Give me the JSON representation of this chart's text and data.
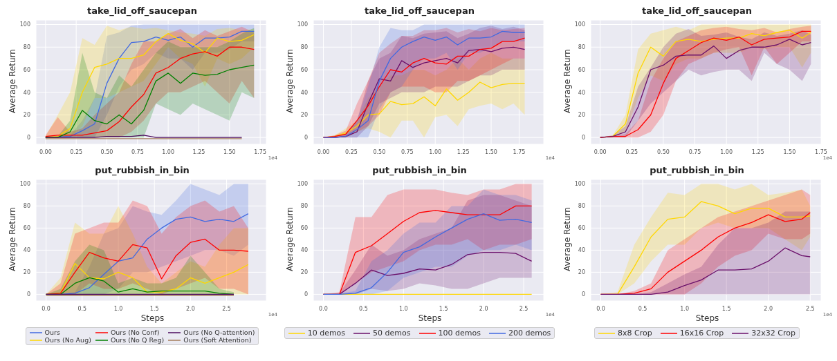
{
  "chart_data": [
    {
      "type": "line",
      "title": "take_lid_off_saucepan",
      "ylabel": "Average Return",
      "annotations": [
        "1e4"
      ],
      "grid": true,
      "xlim": [
        -0.078,
        1.8
      ],
      "xticks": [
        {
          "value": 0,
          "label": "0.00"
        },
        {
          "value": 0.25,
          "label": "0.25"
        },
        {
          "value": 0.5,
          "label": "0.50"
        },
        {
          "value": 0.75,
          "label": "0.75"
        },
        {
          "value": 1,
          "label": "1.00"
        },
        {
          "value": 1.25,
          "label": "1.25"
        },
        {
          "value": 1.5,
          "label": "1.50"
        },
        {
          "value": 1.75,
          "label": "1.75"
        }
      ],
      "ylim": [
        -6,
        104
      ],
      "yticks": [
        0,
        20,
        40,
        60,
        80,
        100
      ],
      "x": [
        0,
        0.1,
        0.2,
        0.3,
        0.4,
        0.5,
        0.6,
        0.7,
        0.8,
        0.9,
        1.0,
        1.1,
        1.2,
        1.3,
        1.4,
        1.5,
        1.6,
        1.7
      ],
      "series": [
        {
          "color": "#4169e1",
          "values": [
            0,
            0.5,
            1,
            6,
            12,
            48,
            70,
            84,
            85,
            89,
            86,
            89,
            80,
            88,
            88,
            89,
            94,
            94
          ],
          "lower": [
            0,
            0,
            0,
            0,
            0,
            20,
            45,
            60,
            65,
            75,
            70,
            70,
            60,
            75,
            75,
            78,
            85,
            85
          ],
          "upper": [
            1,
            1,
            2,
            15,
            35,
            90,
            93,
            99,
            100,
            100,
            100,
            100,
            100,
            100,
            100,
            100,
            100,
            100
          ]
        },
        {
          "color": "#ffd700",
          "values": [
            0,
            1,
            8,
            40,
            62,
            65,
            70,
            70,
            73,
            85,
            92,
            86,
            83,
            75,
            88,
            85,
            86,
            91
          ],
          "lower": [
            0,
            0,
            0,
            10,
            35,
            35,
            40,
            45,
            50,
            65,
            80,
            70,
            65,
            45,
            70,
            65,
            70,
            80
          ],
          "upper": [
            1,
            20,
            40,
            88,
            82,
            99,
            95,
            98,
            96,
            97,
            95,
            93,
            92,
            90,
            96,
            97,
            95,
            96
          ]
        },
        {
          "color": "#ff0000",
          "values": [
            1,
            2,
            2,
            2,
            4,
            6,
            14,
            27,
            38,
            57,
            62,
            70,
            74,
            76,
            72,
            80,
            80,
            78
          ],
          "lower": [
            0,
            0,
            0,
            0,
            0,
            0,
            0,
            5,
            15,
            30,
            40,
            40,
            45,
            50,
            40,
            30,
            50,
            35
          ],
          "upper": [
            2,
            18,
            5,
            8,
            20,
            30,
            40,
            65,
            85,
            85,
            92,
            96,
            88,
            95,
            90,
            94,
            98,
            93
          ]
        },
        {
          "color": "#008000",
          "values": [
            0,
            0,
            5,
            24,
            15,
            12,
            20,
            12,
            24,
            50,
            57,
            48,
            57,
            55,
            56,
            60,
            62,
            64
          ],
          "lower": [
            0,
            0,
            0,
            0,
            0,
            0,
            0,
            0,
            0,
            30,
            25,
            20,
            30,
            25,
            20,
            15,
            40,
            35
          ],
          "upper": [
            0,
            1,
            15,
            75,
            40,
            35,
            55,
            45,
            60,
            75,
            85,
            80,
            80,
            80,
            80,
            85,
            92,
            97
          ]
        },
        {
          "color": "#a57c5b",
          "values": [
            -1,
            -1,
            -1,
            -1,
            -1,
            -1,
            -1,
            -1,
            -1,
            -1,
            -1,
            -1,
            -1,
            -1,
            -1,
            -1,
            -1,
            null
          ]
        },
        {
          "color": "#4b0a5e",
          "values": [
            0,
            0,
            0,
            0,
            0,
            1,
            1,
            1,
            2,
            0,
            0,
            0,
            0,
            0,
            0,
            0,
            0,
            null
          ]
        }
      ]
    },
    {
      "type": "line",
      "title": "take_lid_off_saucepan",
      "ylabel": "Average Return",
      "annotations": [
        "1e4"
      ],
      "grid": true,
      "xlim": [
        -0.09,
        1.97
      ],
      "xticks": [
        {
          "value": 0,
          "label": "0.00"
        },
        {
          "value": 0.25,
          "label": "0.25"
        },
        {
          "value": 0.5,
          "label": "0.50"
        },
        {
          "value": 0.75,
          "label": "0.75"
        },
        {
          "value": 1,
          "label": "1.00"
        },
        {
          "value": 1.25,
          "label": "1.25"
        },
        {
          "value": 1.5,
          "label": "1.50"
        },
        {
          "value": 1.75,
          "label": "1.75"
        }
      ],
      "ylim": [
        -6,
        104
      ],
      "yticks": [
        0,
        20,
        40,
        60,
        80,
        100
      ],
      "x": [
        0,
        0.1,
        0.2,
        0.3,
        0.4,
        0.5,
        0.6,
        0.7,
        0.8,
        0.9,
        1.0,
        1.1,
        1.2,
        1.3,
        1.4,
        1.5,
        1.6,
        1.7,
        1.8
      ],
      "series": [
        {
          "color": "#ffd700",
          "values": [
            0,
            1,
            4,
            10,
            20,
            21,
            32,
            29,
            30,
            36,
            28,
            43,
            33,
            40,
            49,
            44,
            47,
            48,
            48
          ],
          "lower": [
            0,
            0,
            0,
            5,
            8,
            5,
            0,
            15,
            15,
            0,
            18,
            20,
            10,
            25,
            28,
            30,
            25,
            30,
            20
          ],
          "upper": [
            0,
            2,
            8,
            15,
            35,
            45,
            55,
            55,
            60,
            60,
            55,
            60,
            70,
            60,
            70,
            75,
            70,
            70,
            70
          ]
        },
        {
          "color": "#6a0f6a",
          "values": [
            0,
            0,
            1,
            5,
            30,
            52,
            50,
            68,
            62,
            66,
            68,
            70,
            66,
            77,
            78,
            76,
            79,
            80,
            78
          ],
          "lower": [
            0,
            0,
            0,
            0,
            10,
            30,
            35,
            40,
            40,
            40,
            45,
            45,
            45,
            50,
            55,
            55,
            60,
            60,
            60
          ],
          "upper": [
            0,
            1,
            3,
            15,
            50,
            70,
            75,
            90,
            88,
            92,
            93,
            94,
            88,
            92,
            97,
            99,
            96,
            98,
            95
          ]
        },
        {
          "color": "#ff0000",
          "values": [
            0,
            1,
            3,
            15,
            28,
            45,
            60,
            58,
            66,
            70,
            66,
            65,
            72,
            72,
            78,
            79,
            85,
            85,
            88
          ],
          "lower": [
            0,
            0,
            0,
            5,
            10,
            20,
            40,
            45,
            45,
            45,
            40,
            40,
            50,
            50,
            55,
            60,
            65,
            70,
            70
          ],
          "upper": [
            0,
            2,
            6,
            30,
            50,
            75,
            83,
            90,
            90,
            95,
            95,
            97,
            93,
            96,
            94,
            97,
            95,
            96,
            97
          ]
        },
        {
          "color": "#4169e1",
          "values": [
            0,
            0,
            1,
            7,
            15,
            50,
            70,
            80,
            85,
            89,
            86,
            89,
            82,
            88,
            88,
            89,
            94,
            93,
            93
          ],
          "lower": [
            0,
            0,
            0,
            0,
            0,
            25,
            40,
            45,
            60,
            70,
            70,
            75,
            60,
            75,
            75,
            80,
            85,
            85,
            85
          ],
          "upper": [
            0,
            1,
            3,
            15,
            45,
            80,
            97,
            95,
            95,
            100,
            100,
            100,
            100,
            100,
            100,
            100,
            100,
            100,
            100
          ]
        }
      ]
    },
    {
      "type": "line",
      "title": "take_lid_off_saucepan",
      "ylabel": "Average Return",
      "annotations": [
        "1e4"
      ],
      "grid": true,
      "xlim": [
        -0.075,
        1.75
      ],
      "xticks": [
        {
          "value": 0,
          "label": "0.00"
        },
        {
          "value": 0.25,
          "label": "0.25"
        },
        {
          "value": 0.5,
          "label": "0.50"
        },
        {
          "value": 0.75,
          "label": "0.75"
        },
        {
          "value": 1,
          "label": "1.00"
        },
        {
          "value": 1.25,
          "label": "1.25"
        },
        {
          "value": 1.5,
          "label": "1.50"
        },
        {
          "value": 1.75,
          "label": "1.75"
        }
      ],
      "ylim": [
        -6,
        104
      ],
      "yticks": [
        0,
        20,
        40,
        60,
        80,
        100
      ],
      "x": [
        0,
        0.1,
        0.2,
        0.3,
        0.4,
        0.5,
        0.6,
        0.7,
        0.8,
        0.9,
        1.0,
        1.1,
        1.2,
        1.3,
        1.4,
        1.5,
        1.6,
        1.67
      ],
      "series": [
        {
          "color": "#ffd700",
          "values": [
            0,
            1,
            12,
            57,
            80,
            72,
            85,
            87,
            85,
            87,
            88,
            88,
            92,
            90,
            93,
            95,
            88,
            93
          ],
          "lower": [
            0,
            0,
            5,
            35,
            55,
            50,
            65,
            70,
            70,
            75,
            75,
            75,
            80,
            78,
            80,
            80,
            62,
            75
          ],
          "upper": [
            0,
            2,
            20,
            78,
            92,
            95,
            98,
            95,
            100,
            100,
            100,
            100,
            100,
            100,
            100,
            100,
            100,
            100
          ]
        },
        {
          "color": "#ff0000",
          "values": [
            0,
            1,
            1,
            7,
            20,
            48,
            70,
            77,
            84,
            88,
            86,
            89,
            82,
            87,
            88,
            89,
            94,
            94
          ],
          "lower": [
            0,
            0,
            0,
            0,
            5,
            20,
            50,
            65,
            70,
            75,
            78,
            80,
            55,
            80,
            65,
            75,
            85,
            85
          ],
          "upper": [
            0,
            1,
            3,
            15,
            50,
            70,
            85,
            90,
            95,
            97,
            98,
            96,
            95,
            97,
            93,
            96,
            98,
            99
          ]
        },
        {
          "color": "#6a0f6a",
          "values": [
            0,
            1,
            5,
            27,
            60,
            64,
            72,
            73,
            73,
            81,
            70,
            77,
            80,
            80,
            82,
            87,
            82,
            84
          ],
          "lower": [
            0,
            0,
            0,
            15,
            30,
            40,
            50,
            60,
            55,
            58,
            60,
            60,
            50,
            75,
            65,
            60,
            50,
            65
          ],
          "upper": [
            0,
            2,
            10,
            45,
            62,
            80,
            92,
            96,
            90,
            91,
            93,
            89,
            87,
            93,
            90,
            92,
            95,
            91
          ]
        }
      ]
    },
    {
      "type": "line",
      "title": "put_rubbish_in_bin",
      "xlabel": "Steps",
      "ylabel": "Average Return",
      "annotations": [
        "1e4"
      ],
      "grid": true,
      "legend": "bottom",
      "xlim": [
        -0.14,
        3.05
      ],
      "xticks": [
        {
          "value": 0,
          "label": "0.0"
        },
        {
          "value": 0.5,
          "label": "0.5"
        },
        {
          "value": 1,
          "label": "1.0"
        },
        {
          "value": 1.5,
          "label": "1.5"
        },
        {
          "value": 2,
          "label": "2.0"
        },
        {
          "value": 2.5,
          "label": "2.5"
        }
      ],
      "ylim": [
        -6,
        104
      ],
      "yticks": [
        0,
        20,
        40,
        60,
        80,
        100
      ],
      "x": [
        0,
        0.2,
        0.4,
        0.6,
        0.8,
        1.0,
        1.2,
        1.4,
        1.6,
        1.8,
        2.0,
        2.2,
        2.4,
        2.6,
        2.8
      ],
      "series": [
        {
          "name": "Ours",
          "color": "#4169e1",
          "values": [
            0,
            0,
            1,
            6,
            18,
            30,
            33,
            50,
            60,
            68,
            70,
            66,
            68,
            66,
            73
          ],
          "lower": [
            0,
            0,
            0,
            0,
            0,
            5,
            20,
            20,
            25,
            30,
            35,
            40,
            40,
            35,
            45
          ],
          "upper": [
            0,
            0,
            2,
            25,
            55,
            60,
            80,
            75,
            72,
            85,
            100,
            95,
            90,
            100,
            100
          ]
        },
        {
          "name": "Ours (No Aug)",
          "color": "#ffd700",
          "values": [
            0,
            1,
            28,
            15,
            14,
            20,
            15,
            2,
            2,
            5,
            15,
            10,
            15,
            20,
            27
          ],
          "lower": [
            0,
            0,
            0,
            0,
            0,
            0,
            0,
            0,
            0,
            0,
            0,
            0,
            0,
            0,
            0
          ],
          "upper": [
            0,
            15,
            65,
            55,
            55,
            80,
            55,
            25,
            10,
            20,
            30,
            25,
            45,
            60,
            60
          ]
        },
        {
          "name": "Ours (No Conf)",
          "color": "#ff0000",
          "values": [
            0,
            1,
            20,
            38,
            33,
            30,
            45,
            42,
            14,
            35,
            47,
            50,
            40,
            40,
            39
          ],
          "lower": [
            0,
            0,
            0,
            10,
            5,
            5,
            10,
            5,
            0,
            5,
            10,
            15,
            5,
            5,
            0
          ],
          "upper": [
            0,
            10,
            55,
            60,
            65,
            65,
            85,
            80,
            55,
            70,
            80,
            85,
            75,
            80,
            60
          ]
        },
        {
          "name": "Ours (No Q Reg)",
          "color": "#008000",
          "values": [
            0,
            0,
            10,
            15,
            12,
            2,
            5,
            2,
            3,
            3,
            3,
            3,
            1,
            0,
            null
          ],
          "lower": [
            0,
            0,
            0,
            0,
            0,
            0,
            0,
            0,
            0,
            0,
            0,
            0,
            0,
            0,
            null
          ],
          "upper": [
            0,
            5,
            30,
            45,
            40,
            10,
            15,
            10,
            10,
            15,
            35,
            20,
            5,
            2,
            null
          ]
        },
        {
          "name": "Ours (No Q-attention)",
          "color": "#4b0a5e",
          "values": [
            0,
            0,
            0,
            0,
            0,
            0,
            0,
            0,
            0,
            0,
            0,
            0,
            0,
            0,
            null
          ]
        },
        {
          "name": "Ours (Soft Attention)",
          "color": "#a57c5b",
          "values": [
            -1,
            -1,
            -1,
            -1,
            -1,
            -1,
            -1,
            -1,
            -1,
            -1,
            -1,
            -1,
            -1,
            -1,
            null
          ]
        }
      ]
    },
    {
      "type": "line",
      "title": "put_rubbish_in_bin",
      "xlabel": "Steps",
      "ylabel": "Average Return",
      "annotations": [
        "1e4"
      ],
      "grid": true,
      "legend": "bottom",
      "xlim": [
        -0.125,
        2.75
      ],
      "xticks": [
        {
          "value": 0,
          "label": "0.0"
        },
        {
          "value": 0.5,
          "label": "0.5"
        },
        {
          "value": 1,
          "label": "1.0"
        },
        {
          "value": 1.5,
          "label": "1.5"
        },
        {
          "value": 2,
          "label": "2.0"
        },
        {
          "value": 2.5,
          "label": "2.5"
        }
      ],
      "ylim": [
        -6,
        104
      ],
      "yticks": [
        0,
        20,
        40,
        60,
        80,
        100
      ],
      "x": [
        0,
        0.2,
        0.4,
        0.6,
        0.8,
        1.0,
        1.2,
        1.4,
        1.6,
        1.8,
        2.0,
        2.2,
        2.4,
        2.6
      ],
      "series": [
        {
          "name": "10 demos",
          "color": "#ffd700",
          "values": [
            0,
            0,
            0,
            0,
            0,
            0,
            0,
            0,
            0,
            0,
            0,
            0,
            0,
            0
          ]
        },
        {
          "name": "50 demos",
          "color": "#6a0f6a",
          "values": [
            0,
            0,
            10,
            22,
            17,
            19,
            23,
            22,
            27,
            36,
            38,
            38,
            37,
            30
          ],
          "lower": [
            0,
            0,
            0,
            5,
            3,
            5,
            10,
            8,
            5,
            5,
            10,
            15,
            15,
            15
          ],
          "upper": [
            0,
            1,
            22,
            45,
            35,
            40,
            50,
            55,
            60,
            85,
            90,
            90,
            85,
            80
          ]
        },
        {
          "name": "100 demos",
          "color": "#ff0000",
          "values": [
            0,
            0,
            38,
            44,
            55,
            66,
            74,
            76,
            74,
            72,
            72,
            72,
            80,
            80
          ],
          "lower": [
            0,
            0,
            10,
            20,
            25,
            30,
            40,
            45,
            45,
            50,
            40,
            45,
            45,
            50
          ],
          "upper": [
            0,
            2,
            70,
            70,
            90,
            95,
            95,
            95,
            92,
            90,
            95,
            95,
            100,
            100
          ]
        },
        {
          "name": "200 demos",
          "color": "#4169e1",
          "values": [
            0,
            0,
            1,
            6,
            20,
            38,
            43,
            52,
            60,
            68,
            73,
            67,
            68,
            65
          ],
          "lower": [
            0,
            0,
            0,
            0,
            3,
            15,
            20,
            25,
            25,
            35,
            40,
            40,
            45,
            40
          ],
          "upper": [
            0,
            1,
            3,
            30,
            40,
            55,
            65,
            65,
            80,
            80,
            95,
            90,
            90,
            85
          ]
        }
      ]
    },
    {
      "type": "line",
      "title": "put_rubbish_in_bin",
      "xlabel": "Steps",
      "ylabel": "Average Return",
      "annotations": [
        "1e4"
      ],
      "grid": true,
      "legend": "bottom",
      "xlim": [
        -0.12,
        2.63
      ],
      "xticks": [
        {
          "value": 0,
          "label": "0.0"
        },
        {
          "value": 0.5,
          "label": "0.5"
        },
        {
          "value": 1,
          "label": "1.0"
        },
        {
          "value": 1.5,
          "label": "1.5"
        },
        {
          "value": 2,
          "label": "2.0"
        },
        {
          "value": 2.5,
          "label": "2.5"
        }
      ],
      "ylim": [
        -6,
        104
      ],
      "yticks": [
        0,
        20,
        40,
        60,
        80,
        100
      ],
      "x": [
        0,
        0.2,
        0.4,
        0.6,
        0.8,
        1.0,
        1.2,
        1.4,
        1.6,
        1.8,
        2.0,
        2.2,
        2.4,
        2.5
      ],
      "series": [
        {
          "name": "8x8 Crop",
          "color": "#ffd700",
          "values": [
            0,
            0,
            25,
            52,
            68,
            70,
            84,
            80,
            73,
            78,
            78,
            70,
            70,
            71
          ],
          "lower": [
            0,
            0,
            10,
            30,
            45,
            45,
            60,
            65,
            60,
            60,
            60,
            50,
            40,
            52
          ],
          "upper": [
            0,
            2,
            45,
            70,
            92,
            90,
            100,
            100,
            95,
            100,
            90,
            92,
            95,
            80
          ]
        },
        {
          "name": "16x16 Crop",
          "color": "#ff0000",
          "values": [
            0,
            0,
            1,
            5,
            20,
            30,
            40,
            52,
            60,
            65,
            72,
            66,
            68,
            74
          ],
          "lower": [
            0,
            0,
            0,
            0,
            0,
            0,
            10,
            25,
            35,
            40,
            55,
            50,
            50,
            55
          ],
          "upper": [
            0,
            0,
            3,
            10,
            40,
            50,
            60,
            70,
            75,
            80,
            85,
            90,
            95,
            90
          ]
        },
        {
          "name": "32x32 Crop",
          "color": "#6a0f6a",
          "values": [
            0,
            0,
            0,
            0,
            2,
            8,
            13,
            22,
            22,
            23,
            30,
            42,
            35,
            34
          ],
          "lower": [
            0,
            0,
            0,
            0,
            0,
            0,
            0,
            0,
            0,
            0,
            0,
            0,
            0,
            0
          ],
          "upper": [
            0,
            0,
            0,
            2,
            10,
            18,
            25,
            45,
            60,
            60,
            65,
            75,
            75,
            75
          ]
        }
      ]
    }
  ]
}
